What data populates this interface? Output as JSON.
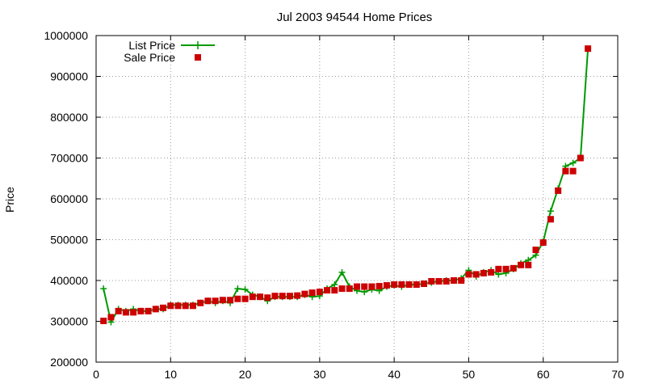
{
  "chart_data": {
    "type": "line",
    "title": "Jul 2003 94544 Home Prices",
    "xlabel": "",
    "ylabel": "Price",
    "xlim": [
      0,
      70
    ],
    "ylim": [
      200000,
      1000000
    ],
    "x_ticks": [
      0,
      10,
      20,
      30,
      40,
      50,
      60,
      70
    ],
    "y_ticks": [
      200000,
      300000,
      400000,
      500000,
      600000,
      700000,
      800000,
      900000,
      1000000
    ],
    "grid": true,
    "legend_position": "top-left",
    "x": [
      1,
      2,
      3,
      4,
      5,
      6,
      7,
      8,
      9,
      10,
      11,
      12,
      13,
      14,
      15,
      16,
      17,
      18,
      19,
      20,
      21,
      22,
      23,
      24,
      25,
      26,
      27,
      28,
      29,
      30,
      31,
      32,
      33,
      34,
      35,
      36,
      37,
      38,
      39,
      40,
      41,
      42,
      43,
      44,
      45,
      46,
      47,
      48,
      49,
      50,
      51,
      52,
      53,
      54,
      55,
      56,
      57,
      58,
      59,
      60,
      61,
      62,
      63,
      64,
      65,
      66
    ],
    "series": [
      {
        "name": "List Price",
        "color": "#009900",
        "marker": "plus",
        "style": "linespoints",
        "values": [
          380000,
          298000,
          330000,
          325000,
          330000,
          325000,
          325000,
          330000,
          330000,
          340000,
          340000,
          340000,
          340000,
          345000,
          350000,
          345000,
          350000,
          345000,
          380000,
          378000,
          365000,
          360000,
          350000,
          360000,
          360000,
          360000,
          360000,
          365000,
          360000,
          362000,
          380000,
          390000,
          420000,
          385000,
          375000,
          372000,
          378000,
          375000,
          385000,
          388000,
          385000,
          390000,
          390000,
          392000,
          395000,
          398000,
          400000,
          400000,
          405000,
          425000,
          410000,
          420000,
          425000,
          415000,
          418000,
          428000,
          442000,
          450000,
          462000,
          495000,
          570000,
          625000,
          680000,
          688000,
          700000,
          968000
        ]
      },
      {
        "name": "Sale Price",
        "color": "#cc0000",
        "marker": "square",
        "style": "points",
        "values": [
          301000,
          310000,
          325000,
          322000,
          322000,
          325000,
          325000,
          330000,
          333000,
          338000,
          338000,
          338000,
          338000,
          345000,
          350000,
          350000,
          352000,
          352000,
          355000,
          355000,
          360000,
          360000,
          358000,
          362000,
          362000,
          362000,
          363000,
          367000,
          370000,
          372000,
          376000,
          376000,
          380000,
          380000,
          385000,
          385000,
          385000,
          386000,
          388000,
          390000,
          390000,
          390000,
          390000,
          392000,
          398000,
          398000,
          398000,
          400000,
          400000,
          415000,
          415000,
          418000,
          420000,
          428000,
          428000,
          430000,
          438000,
          438000,
          475000,
          493000,
          550000,
          620000,
          668000,
          668000,
          700000,
          968000
        ]
      }
    ]
  }
}
